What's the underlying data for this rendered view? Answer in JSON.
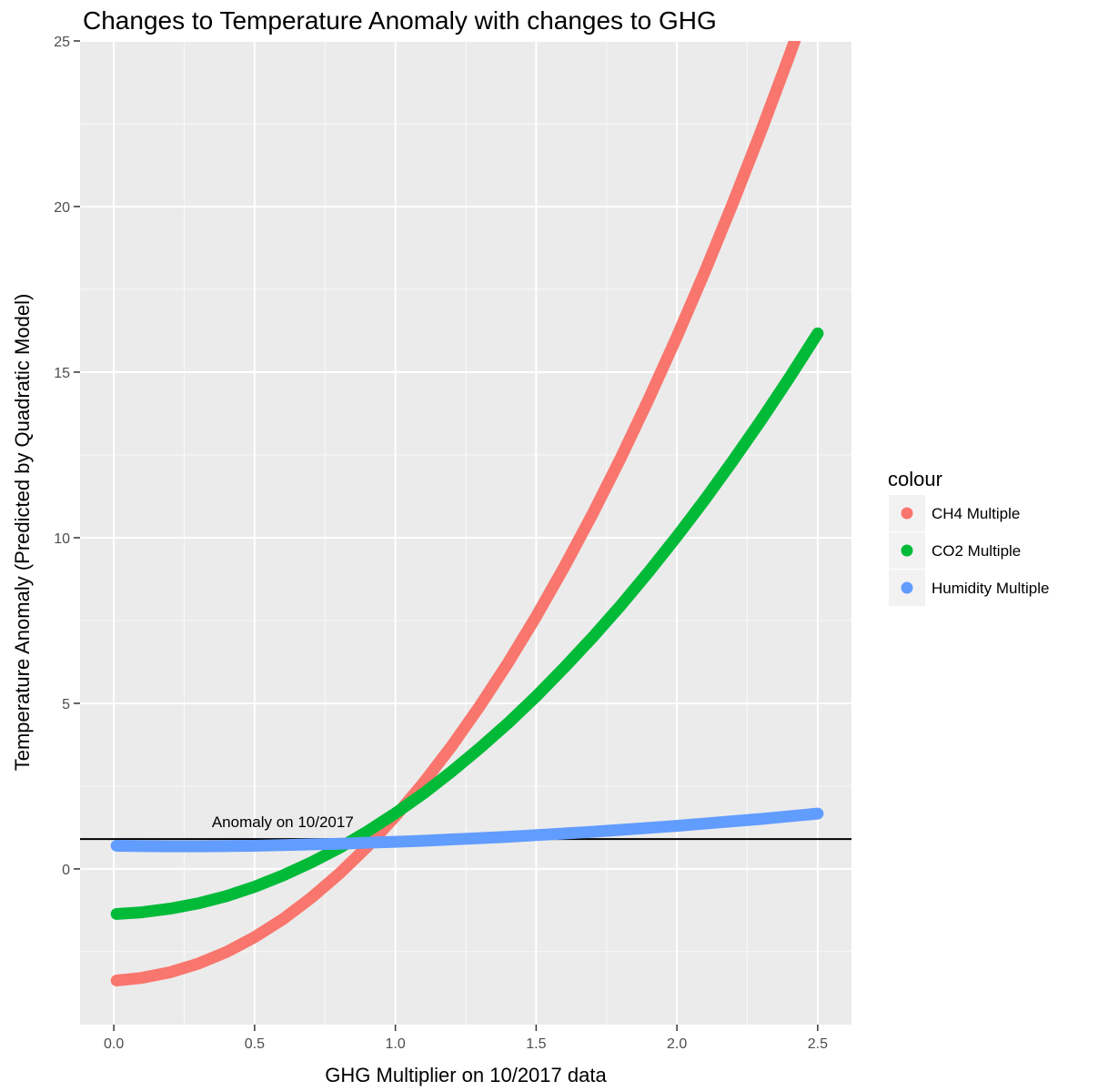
{
  "chart_data": {
    "type": "line",
    "title": "Changes to Temperature Anomaly with changes to GHG",
    "xlabel": "GHG Multiplier on 10/2017 data",
    "ylabel": "Temperature Anomaly (Predicted by Quadratic Model)",
    "xlim": [
      -0.12,
      2.62
    ],
    "ylim": [
      -4.7,
      25.0
    ],
    "x_ticks": [
      0.0,
      0.5,
      1.0,
      1.5,
      2.0,
      2.5
    ],
    "x_tick_labels": [
      "0.0",
      "0.5",
      "1.0",
      "1.5",
      "2.0",
      "2.5"
    ],
    "y_ticks": [
      0,
      5,
      10,
      15,
      20,
      25
    ],
    "y_tick_labels": [
      "0",
      "5",
      "10",
      "15",
      "20",
      "25"
    ],
    "grid": true,
    "legend": {
      "title": "colour",
      "position": "right"
    },
    "reference_line": {
      "y": 0.9,
      "label": "Anomaly on 10/2017",
      "label_x": 0.6,
      "color": "#000000"
    },
    "series": [
      {
        "name": "CH4 Multiple",
        "color": "#F8766D",
        "x": [
          0.01,
          0.1,
          0.2,
          0.3,
          0.4,
          0.5,
          0.6,
          0.7,
          0.8,
          0.9,
          1.0,
          1.1,
          1.2,
          1.3,
          1.4,
          1.5,
          1.6,
          1.7,
          1.8,
          1.9,
          2.0,
          2.1,
          2.2,
          2.3,
          2.4,
          2.5
        ],
        "y": [
          -3.37,
          -3.29,
          -3.12,
          -2.86,
          -2.51,
          -2.06,
          -1.52,
          -0.88,
          -0.15,
          0.67,
          1.59,
          2.6,
          3.71,
          4.92,
          6.22,
          7.62,
          9.12,
          10.71,
          12.4,
          14.19,
          16.07,
          18.05,
          20.13,
          22.3,
          24.57,
          26.94
        ]
      },
      {
        "name": "CO2 Multiple",
        "color": "#00BA38",
        "x": [
          0.01,
          0.1,
          0.2,
          0.3,
          0.4,
          0.5,
          0.6,
          0.7,
          0.8,
          0.9,
          1.0,
          1.1,
          1.2,
          1.3,
          1.4,
          1.5,
          1.6,
          1.7,
          1.8,
          1.9,
          2.0,
          2.1,
          2.2,
          2.3,
          2.4,
          2.5
        ],
        "y": [
          -1.36,
          -1.31,
          -1.2,
          -1.04,
          -0.82,
          -0.54,
          -0.2,
          0.19,
          0.63,
          1.13,
          1.68,
          2.28,
          2.94,
          3.65,
          4.4,
          5.21,
          6.08,
          6.99,
          7.95,
          8.97,
          10.04,
          11.16,
          12.34,
          13.56,
          14.84,
          16.17
        ]
      },
      {
        "name": "Humidity Multiple",
        "color": "#619CFF",
        "x": [
          0.01,
          0.1,
          0.2,
          0.3,
          0.4,
          0.5,
          0.6,
          0.7,
          0.8,
          0.9,
          1.0,
          1.1,
          1.2,
          1.3,
          1.4,
          1.5,
          1.6,
          1.7,
          1.8,
          1.9,
          2.0,
          2.1,
          2.2,
          2.3,
          2.4,
          2.5
        ],
        "y": [
          0.7,
          0.69,
          0.68,
          0.68,
          0.69,
          0.7,
          0.72,
          0.74,
          0.76,
          0.79,
          0.82,
          0.85,
          0.89,
          0.93,
          0.97,
          1.02,
          1.07,
          1.12,
          1.18,
          1.24,
          1.3,
          1.37,
          1.44,
          1.51,
          1.59,
          1.67
        ]
      }
    ]
  }
}
